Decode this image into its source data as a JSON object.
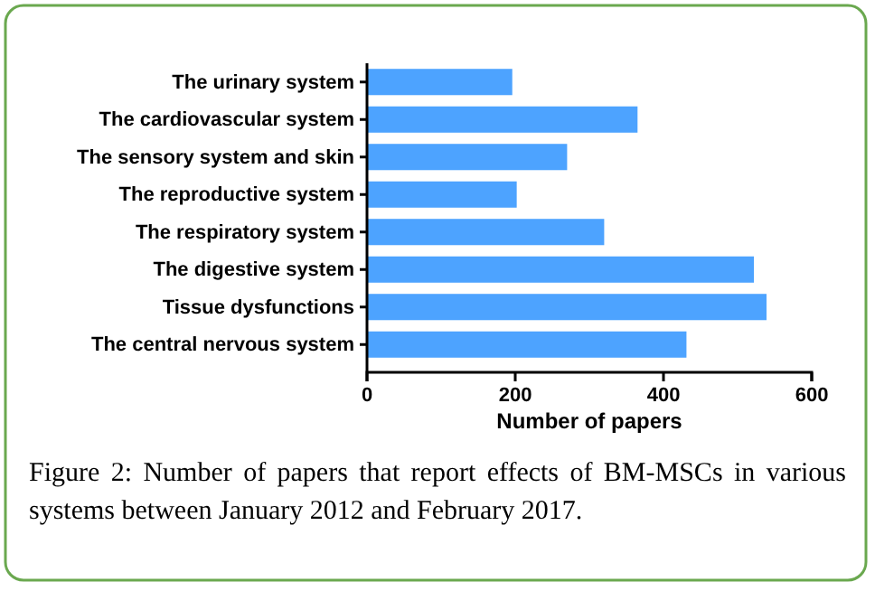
{
  "chart_data": {
    "type": "bar",
    "orientation": "horizontal",
    "categories": [
      "The urinary system",
      "The cardiovascular system",
      "The sensory system and skin",
      "The reproductive system",
      "The respiratory system",
      "The digestive system",
      "Tissue dysfunctions",
      "The central nervous system"
    ],
    "values": [
      196,
      365,
      270,
      202,
      320,
      522,
      539,
      431
    ],
    "color": "#4da3ff",
    "xlim": [
      0,
      600
    ],
    "xticks": [
      0,
      200,
      400,
      600
    ],
    "xlabel": "Number of papers",
    "annotations": [
      "Figure 2: Number of papers that report effects of BM-MSCs in various systems between January 2012 and February 2017."
    ]
  }
}
